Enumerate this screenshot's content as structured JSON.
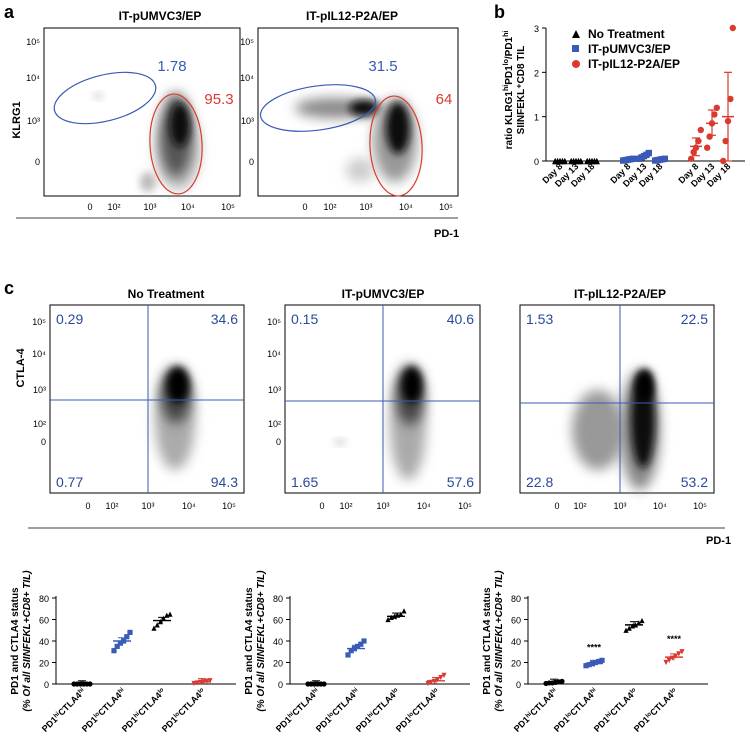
{
  "panels": {
    "a": "a",
    "b": "b",
    "c": "c"
  },
  "colors": {
    "blue": "#3a5ab8",
    "red": "#d93a30",
    "black": "#000000",
    "quad": "#3a5ab8"
  },
  "panel_a": {
    "ylabel": "KLRG1",
    "xlabel": "PD-1",
    "yticks": [
      "10⁵",
      "10⁴",
      "10³",
      "0"
    ],
    "xticks": [
      "0",
      "10²",
      "10³",
      "10⁴",
      "10⁵"
    ],
    "plots": [
      {
        "title": "IT-pUMVC3/EP",
        "blue_value": "1.78",
        "red_value": "95.3"
      },
      {
        "title": "IT-pIL12-P2A/EP",
        "blue_value": "31.5",
        "red_value": "64"
      }
    ]
  },
  "panel_c": {
    "ylabel": "CTLA-4",
    "xlabel": "PD-1",
    "yticks": [
      "10⁵",
      "10⁴",
      "10³",
      "10²",
      "0"
    ],
    "xticks": [
      "0",
      "10²",
      "10³",
      "10⁴",
      "10⁵"
    ],
    "plots": [
      {
        "title": "No Treatment",
        "q": [
          "0.29",
          "34.6",
          "0.77",
          "94.3"
        ]
      },
      {
        "title": "IT-pUMVC3/EP",
        "q": [
          "0.15",
          "40.6",
          "1.65",
          "57.6"
        ]
      },
      {
        "title": "IT-pIL12-P2A/EP",
        "q": [
          "1.53",
          "22.5",
          "22.8",
          "53.2"
        ]
      }
    ]
  },
  "chart_data": [
    {
      "type": "scatter",
      "title": "",
      "ylabel_parts": [
        "ratio KLRG1",
        "hi",
        "PD1",
        "lo",
        "/PD1",
        "hi"
      ],
      "ylabel2": "SIINFEKL⁺CD8 TIL",
      "yticks": [
        "3",
        "2",
        "1",
        "0"
      ],
      "ylim": [
        0,
        3
      ],
      "legend": [
        "No Treatment",
        "IT-pUMVC3/EP",
        "IT-pIL12-P2A/EP"
      ],
      "legend_position": "top-right",
      "categories": [
        "Day 8",
        "Day 13",
        "Day 18",
        "Day 8",
        "Day 13",
        "Day 18",
        "Day 8",
        "Day 13",
        "Day 18"
      ],
      "series": [
        {
          "name": "No Treatment",
          "color": "#000000",
          "marker": "triangle",
          "groups": [
            [
              0,
              0,
              0,
              0,
              0
            ],
            [
              0,
              0,
              0,
              0,
              0
            ],
            [
              0,
              0,
              0,
              0,
              0
            ]
          ],
          "means": [
            0,
            0,
            0
          ]
        },
        {
          "name": "IT-pUMVC3/EP",
          "color": "#3a5ab8",
          "marker": "square",
          "groups": [
            [
              0.01,
              0.02,
              0.03,
              0.04,
              0.05
            ],
            [
              0.05,
              0.08,
              0.11,
              0.14,
              0.18
            ],
            [
              0.01,
              0.02,
              0.03,
              0.04,
              0.05
            ]
          ],
          "means": [
            0.03,
            0.11,
            0.03
          ]
        },
        {
          "name": "IT-pIL12-P2A/EP",
          "color": "#d93a30",
          "marker": "circle",
          "groups": [
            [
              0.05,
              0.2,
              0.3,
              0.45,
              0.7
            ],
            [
              0.3,
              0.55,
              0.85,
              1.05,
              1.2
            ],
            [
              0.0,
              0.45,
              0.9,
              1.4,
              3.0
            ]
          ],
          "means": [
            0.33,
            0.85,
            1.0
          ],
          "err": [
            [
              0.12,
              0.52
            ],
            [
              0.58,
              1.15
            ],
            [
              0.0,
              2.0
            ]
          ]
        }
      ]
    },
    {
      "type": "scatter",
      "title": "No Treatment",
      "ylabel": "PD1 and CTLA4 status",
      "ylabel2": "(% Of all SIINFEKL+CD8+ TIL)",
      "yticks": [
        "80",
        "60",
        "40",
        "20",
        "0"
      ],
      "ylim": [
        0,
        80
      ],
      "categories": [
        "PD1hiCTLA4hi",
        "PD1loCTLA4hi",
        "PD1hiCTLA4lo",
        "PD1loCTLA4lo"
      ],
      "category_labels": [
        [
          "PD1",
          "hi",
          "CTLA4",
          "hi"
        ],
        [
          "PD1",
          "lo",
          "CTLA4",
          "hi"
        ],
        [
          "PD1",
          "hi",
          "CTLA4",
          "lo"
        ],
        [
          "PD1",
          "lo",
          "CTLA4",
          "lo"
        ]
      ],
      "markers": [
        "circle",
        "square",
        "triangle",
        "invtriangle"
      ],
      "colors": [
        "#000000",
        "#3a5ab8",
        "#000000",
        "#d93a30"
      ],
      "points": [
        [
          0,
          0,
          0,
          0,
          0,
          0
        ],
        [
          31,
          35,
          38,
          40,
          44,
          48
        ],
        [
          52,
          55,
          58,
          61,
          64,
          65
        ],
        [
          0.5,
          1,
          1.5,
          2,
          2.5,
          3
        ]
      ],
      "means": [
        0,
        40,
        59,
        2
      ],
      "stars": [
        "",
        "",
        "",
        ""
      ]
    },
    {
      "type": "scatter",
      "title": "IT-pUMVC3/EP",
      "ylabel": "PD1 and CTLA4 status",
      "ylabel2": "(% Of all SIINFEKL+CD8+ TIL)",
      "yticks": [
        "80",
        "60",
        "40",
        "20",
        "0"
      ],
      "ylim": [
        0,
        80
      ],
      "categories": [
        "PD1hiCTLA4hi",
        "PD1loCTLA4hi",
        "PD1hiCTLA4lo",
        "PD1loCTLA4lo"
      ],
      "category_labels": [
        [
          "PD1",
          "hi",
          "CTLA4",
          "hi"
        ],
        [
          "PD1",
          "lo",
          "CTLA4",
          "hi"
        ],
        [
          "PD1",
          "hi",
          "CTLA4",
          "lo"
        ],
        [
          "PD1",
          "lo",
          "CTLA4",
          "lo"
        ]
      ],
      "markers": [
        "circle",
        "square",
        "triangle",
        "invtriangle"
      ],
      "colors": [
        "#000000",
        "#3a5ab8",
        "#000000",
        "#d93a30"
      ],
      "points": [
        [
          0,
          0,
          0,
          0,
          0,
          0
        ],
        [
          27,
          31,
          33,
          35,
          37,
          40
        ],
        [
          60,
          62,
          63,
          64,
          65,
          68
        ],
        [
          0.5,
          1.5,
          2.5,
          4,
          6,
          8
        ]
      ],
      "means": [
        0,
        33,
        63,
        3
      ],
      "stars": [
        "",
        "",
        "",
        ""
      ]
    },
    {
      "type": "scatter",
      "title": "IT-pIL12-P2A/EP",
      "ylabel": "PD1 and CTLA4 status",
      "ylabel2": "(% Of all SIINFEKL+CD8+ TIL)",
      "yticks": [
        "80",
        "60",
        "40",
        "20",
        "0"
      ],
      "ylim": [
        0,
        80
      ],
      "categories": [
        "PD1hiCTLA4hi",
        "PD1loCTLA4hi",
        "PD1hiCTLA4lo",
        "PD1loCTLA4lo"
      ],
      "category_labels": [
        [
          "PD1",
          "hi",
          "CTLA4",
          "hi"
        ],
        [
          "PD1",
          "lo",
          "CTLA4",
          "hi"
        ],
        [
          "PD1",
          "hi",
          "CTLA4",
          "lo"
        ],
        [
          "PD1",
          "lo",
          "CTLA4",
          "lo"
        ]
      ],
      "markers": [
        "circle",
        "square",
        "triangle",
        "invtriangle"
      ],
      "colors": [
        "#000000",
        "#3a5ab8",
        "#000000",
        "#d93a30"
      ],
      "points": [
        [
          0.5,
          1,
          1,
          1.5,
          2,
          2.5
        ],
        [
          17,
          18,
          19,
          20,
          21,
          22
        ],
        [
          50,
          52,
          54,
          55,
          57,
          59
        ],
        [
          20,
          22,
          24,
          26,
          28,
          30
        ]
      ],
      "means": [
        1.5,
        19,
        55,
        25
      ],
      "stars": [
        "",
        "****",
        "",
        "****"
      ]
    }
  ]
}
